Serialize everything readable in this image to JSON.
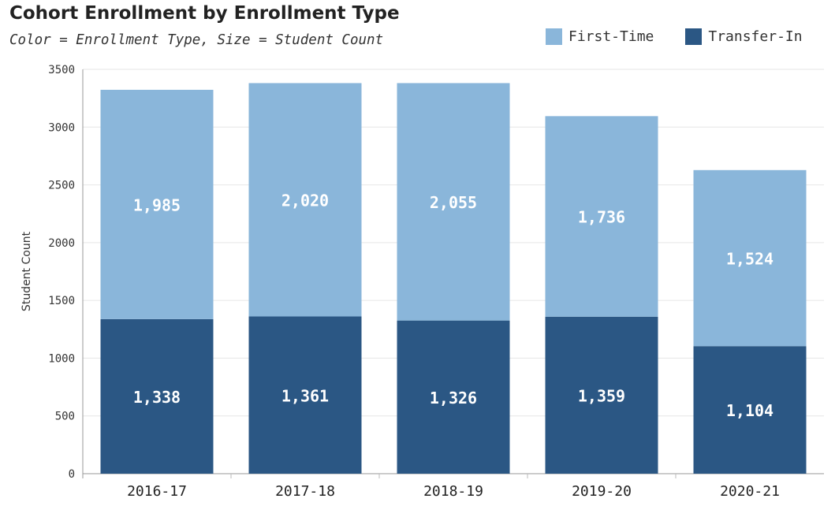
{
  "chart_data": {
    "type": "bar",
    "stacked": true,
    "title": "Cohort Enrollment by Enrollment Type",
    "subtitle": "Color = Enrollment Type, Size = Student Count",
    "xlabel": "",
    "ylabel": "Student Count",
    "categories": [
      "2016-17",
      "2017-18",
      "2018-19",
      "2019-20",
      "2020-21"
    ],
    "series": [
      {
        "name": "Transfer-In",
        "color": "#2b5784",
        "values": [
          1338,
          1361,
          1326,
          1359,
          1104
        ]
      },
      {
        "name": "First-Time",
        "color": "#8ab6da",
        "values": [
          1985,
          2020,
          2055,
          1736,
          1524
        ]
      }
    ],
    "ylim": [
      0,
      3500
    ],
    "yticks": [
      "0",
      "500",
      "1000",
      "1500",
      "2000",
      "2500",
      "3000",
      "3500"
    ],
    "data_labels": {
      "Transfer-In": [
        "1,338",
        "1,361",
        "1,326",
        "1,359",
        "1,104"
      ],
      "First-Time": [
        "1,985",
        "2,020",
        "2,055",
        "1,736",
        "1,524"
      ]
    },
    "grid": true,
    "legend_position": "top-right"
  },
  "legend": [
    {
      "label": "First-Time",
      "color": "#8ab6da"
    },
    {
      "label": "Transfer-In",
      "color": "#2b5784"
    }
  ]
}
